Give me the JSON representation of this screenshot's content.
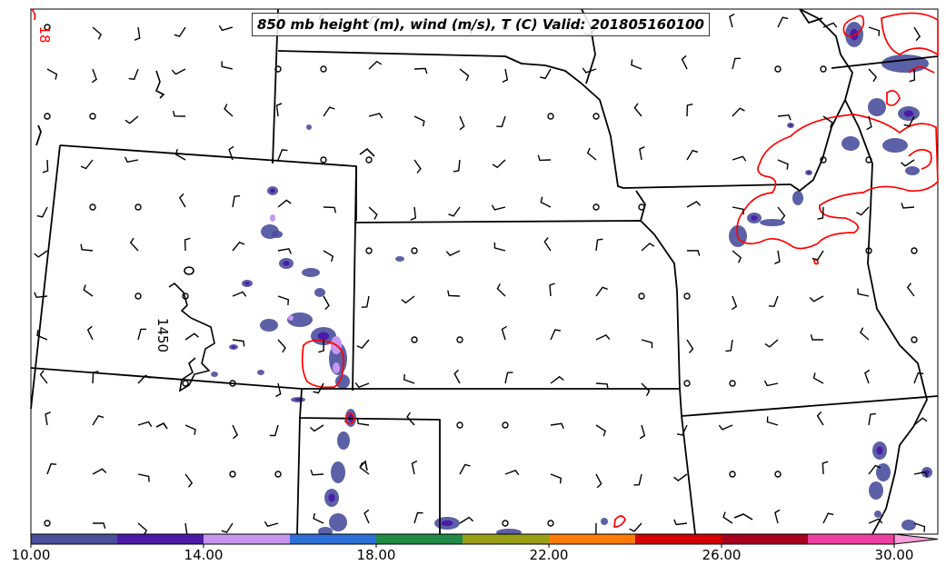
{
  "title": "850 mb height (m), wind (m/s), T (C) Valid: 201805160100",
  "contour_labels": {
    "height": "1450",
    "temperature": "18"
  },
  "colorbar": {
    "ticks": [
      "10.00",
      "14.00",
      "18.00",
      "22.00",
      "26.00",
      "30.00"
    ],
    "min": 10,
    "max": 31,
    "extend": "max",
    "colors": [
      "#4a4f9c",
      "#4b1aa6",
      "#c896f0",
      "#2f6fd8",
      "#218a45",
      "#9aa015",
      "#ff7a00",
      "#d50000",
      "#a8001e",
      "#ef3fa0",
      "#f8a0d8"
    ]
  },
  "colors": {
    "temperature_contour": "#ff0000",
    "height_contour": "#000000",
    "borders": "#000000",
    "wind_barbs": "#000000"
  }
}
